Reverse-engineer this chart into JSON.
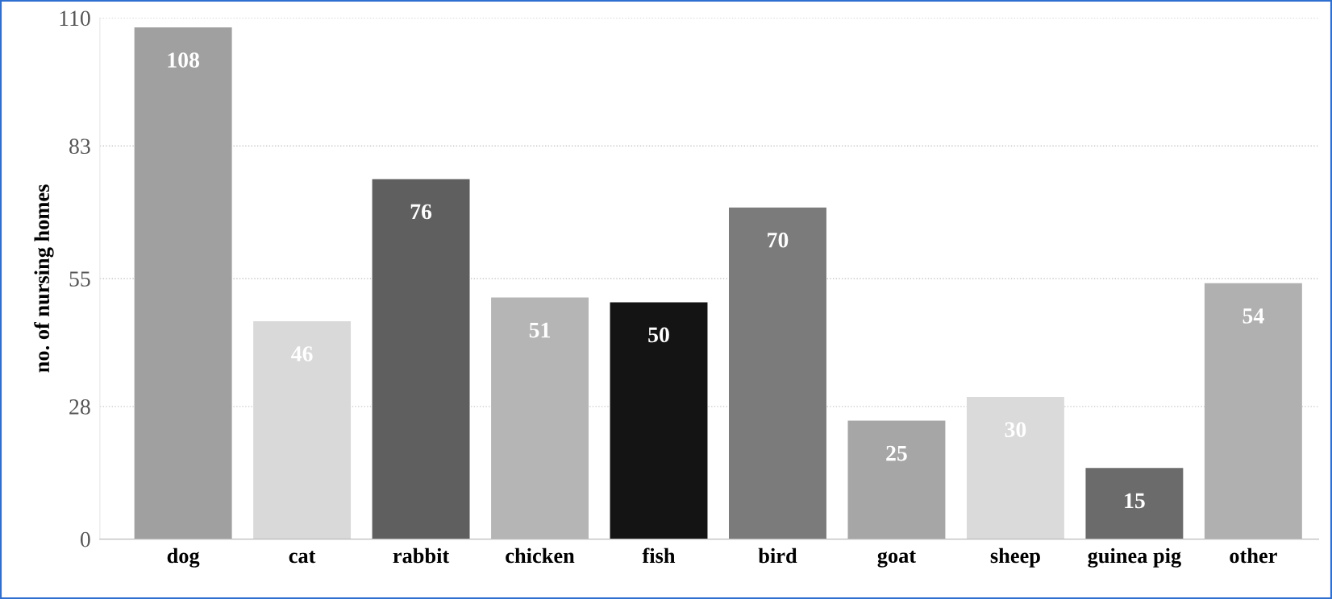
{
  "chart_data": {
    "type": "bar",
    "ylabel": "no. of nursing homes",
    "categories": [
      "dog",
      "cat",
      "rabbit",
      "chicken",
      "fish",
      "bird",
      "goat",
      "sheep",
      "guinea pig",
      "other"
    ],
    "values": [
      108,
      46,
      76,
      51,
      50,
      70,
      25,
      30,
      15,
      54
    ],
    "colors": [
      "#a0a0a0",
      "#d9d9d9",
      "#5f5f5f",
      "#b5b5b5",
      "#141414",
      "#7b7b7b",
      "#a6a6a6",
      "#dadada",
      "#6b6b6b",
      "#b0b0b0"
    ],
    "ylim": [
      0,
      110
    ],
    "yticks": [
      0,
      28,
      55,
      83,
      110
    ],
    "grid": "y",
    "data_labels": true
  }
}
